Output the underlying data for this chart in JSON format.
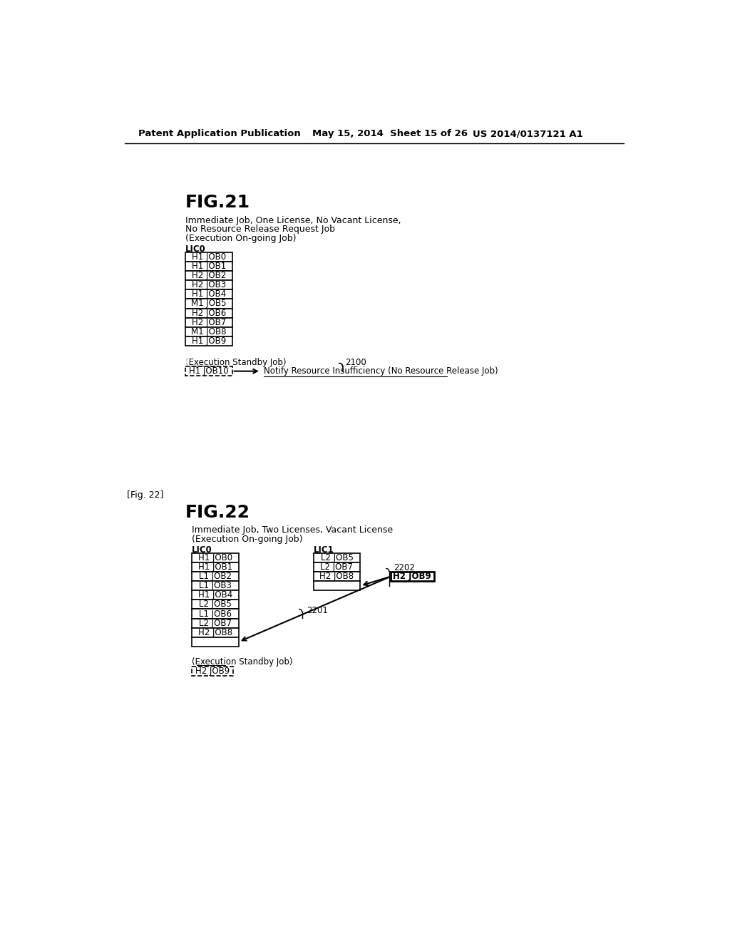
{
  "bg_color": "#ffffff",
  "header_text_left": "Patent Application Publication",
  "header_text_mid": "May 15, 2014  Sheet 15 of 26",
  "header_text_right": "US 2014/0137121 A1",
  "fig21_title": "FIG.21",
  "fig21_desc1": "Immediate Job, One License, No Vacant License,",
  "fig21_desc2": "No Resource Release Request Job",
  "fig21_desc3": "(Execution On-going Job)",
  "fig21_lic_label": "LIC0",
  "fig21_jobs": [
    "H1 JOB0",
    "H1 JOB1",
    "H2 JOB2",
    "H2 JOB3",
    "H1 JOB4",
    "M1 JOB5",
    "H2 JOB6",
    "H2 JOB7",
    "M1 JOB8",
    "H1 JOB9"
  ],
  "fig21_standby_label": "(Execution Standby Job)",
  "fig21_standby_job": "H1 JOB10",
  "fig21_arrow_label": "2100",
  "fig21_notify_text": "Notify Resource Insufficiency (No Resource Release Job)",
  "fig22_ref": "[Fig. 22]",
  "fig22_title": "FIG.22",
  "fig22_desc1": "Immediate Job, Two Licenses, Vacant License",
  "fig22_desc2": "(Execution On-going Job)",
  "fig22_lic0_label": "LIC0",
  "fig22_lic0_jobs": [
    "H1 JOB0",
    "H1 JOB1",
    "L1 JOB2",
    "L1 JOB3",
    "H1 JOB4",
    "L2 JOB5",
    "L1 JOB6",
    "L2 JOB7",
    "H2 JOB8"
  ],
  "fig22_lic1_label": "LIC1",
  "fig22_lic1_jobs": [
    "L2 JOB5",
    "L2 JOB7",
    "H2 JOB8"
  ],
  "fig22_standby_label": "(Execution Standby Job)",
  "fig22_standby_job": "H2 JOB9",
  "fig22_arrow1_label": "2201",
  "fig22_arrow2_label": "2202",
  "fig22_standby_job_box": "H2 JOB9"
}
